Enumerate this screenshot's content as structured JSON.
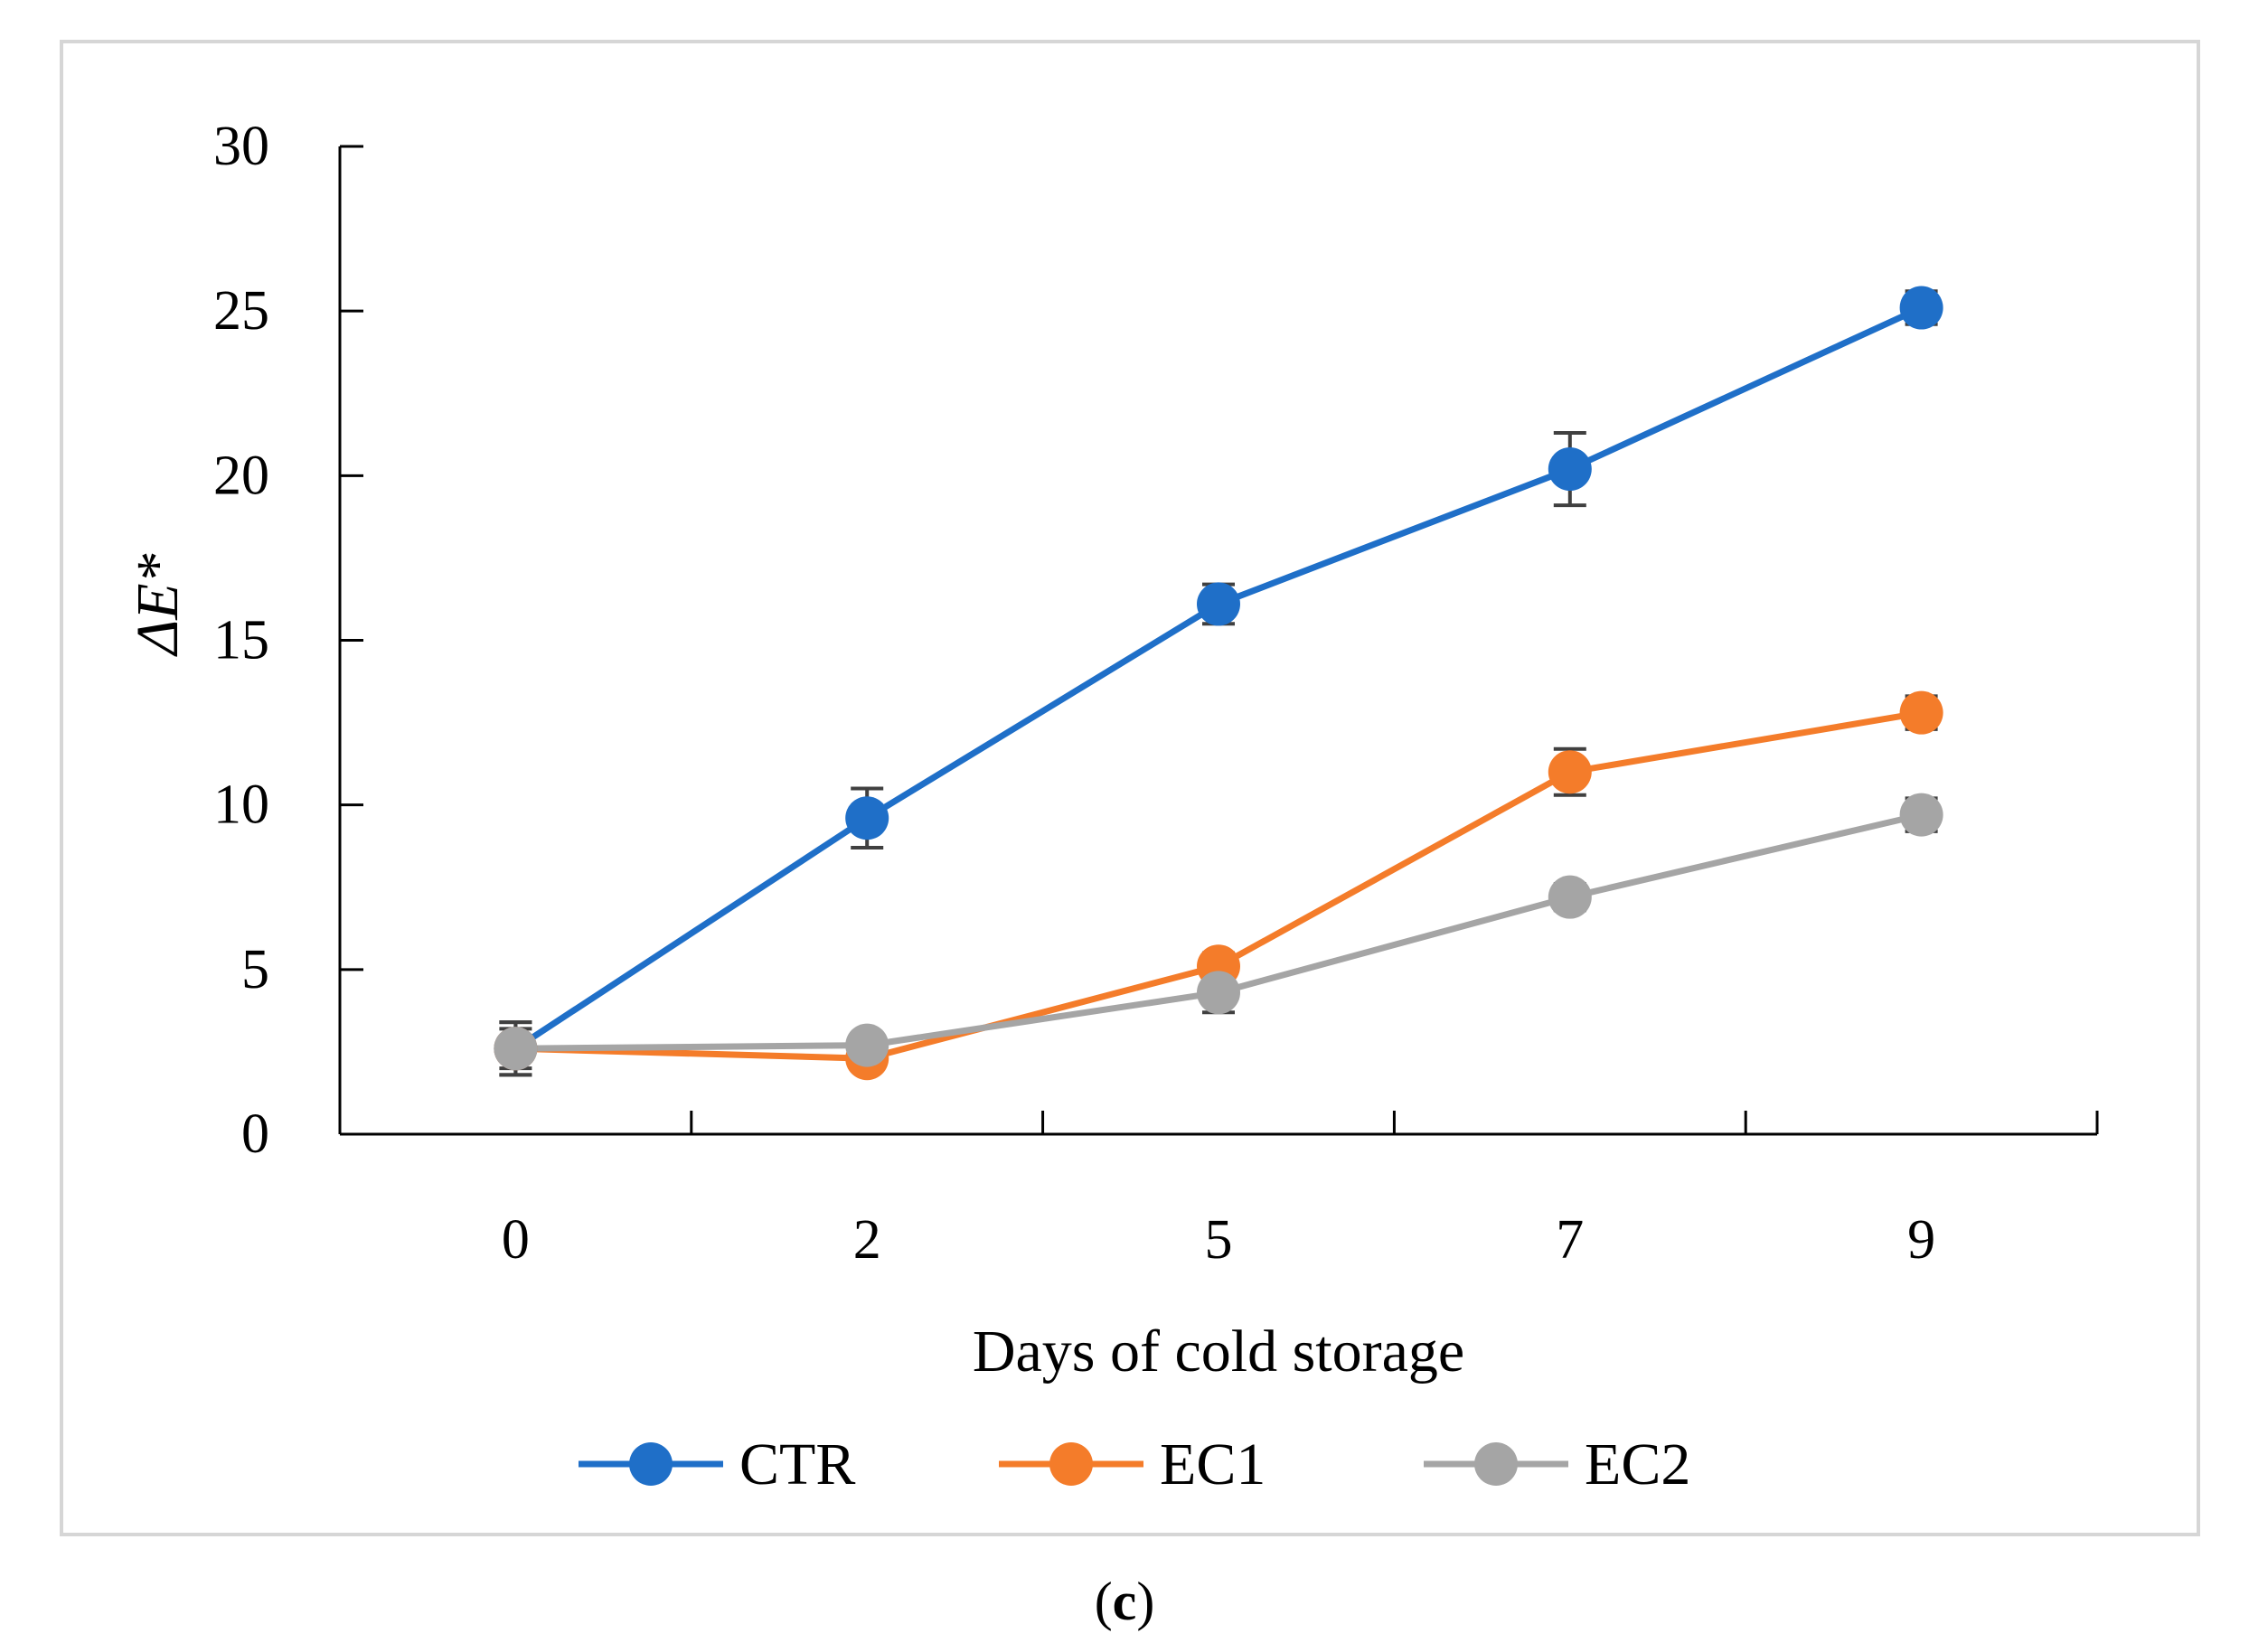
{
  "chart_data": {
    "type": "line",
    "title": "",
    "xlabel": "Days of cold storage",
    "ylabel": "ΔE*",
    "categories": [
      "0",
      "2",
      "5",
      "7",
      "9"
    ],
    "ylim": [
      0,
      30
    ],
    "yticks": [
      0,
      5,
      10,
      15,
      20,
      25,
      30
    ],
    "grid": false,
    "legend_position": "bottom",
    "series": [
      {
        "name": "CTR",
        "color": "#1f6fc8",
        "values": [
          2.6,
          9.6,
          16.1,
          20.2,
          25.1
        ],
        "errors": [
          0.8,
          0.9,
          0.6,
          1.1,
          0.5
        ]
      },
      {
        "name": "EC1",
        "color": "#f47c2a",
        "values": [
          2.6,
          2.3,
          5.1,
          11.0,
          12.8
        ],
        "errors": [
          0.6,
          0.3,
          0.4,
          0.7,
          0.5
        ]
      },
      {
        "name": "EC2",
        "color": "#a5a5a5",
        "values": [
          2.6,
          2.7,
          4.3,
          7.2,
          9.7
        ],
        "errors": [
          0.8,
          0.3,
          0.6,
          0.4,
          0.5
        ]
      }
    ]
  },
  "caption": {
    "open": "(",
    "letter": "c",
    "close": ")"
  }
}
